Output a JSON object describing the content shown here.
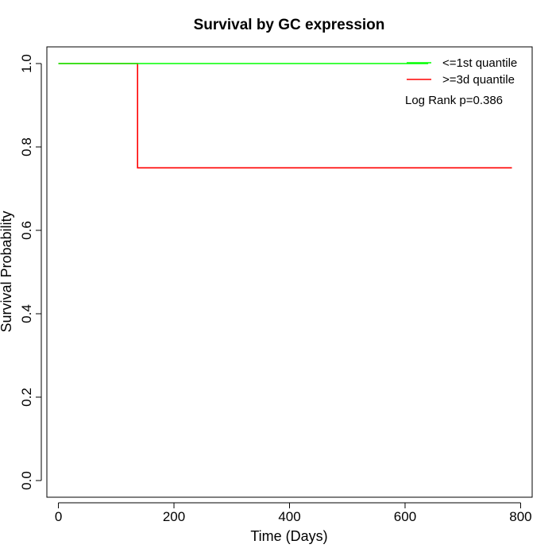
{
  "chart_data": {
    "type": "line",
    "title": "Survival by GC expression",
    "xlabel": "Time (Days)",
    "ylabel": "Survival Probability",
    "xlim": [
      -20,
      820
    ],
    "ylim": [
      -0.04,
      1.04
    ],
    "x_ticks": [
      0,
      200,
      400,
      600,
      800
    ],
    "y_ticks": [
      0.0,
      0.2,
      0.4,
      0.6,
      0.8,
      1.0
    ],
    "x_tick_labels": [
      "0",
      "200",
      "400",
      "600",
      "800"
    ],
    "y_tick_labels": [
      "0.0",
      "0.2",
      "0.4",
      "0.6",
      "0.8",
      "1.0"
    ],
    "grid": false,
    "legend_position": "top-right",
    "series": [
      {
        "name": "<=1st quantile",
        "color": "#00ff00",
        "step": true,
        "points": [
          [
            0,
            1.0
          ],
          [
            640,
            1.0
          ]
        ]
      },
      {
        "name": ">=3d quantile",
        "color": "#ff0000",
        "step": true,
        "points": [
          [
            0,
            1.0
          ],
          [
            137,
            1.0
          ],
          [
            137,
            0.75
          ],
          [
            785,
            0.75
          ]
        ]
      }
    ],
    "annotations": [
      {
        "text": "Log Rank p=0.386"
      }
    ]
  }
}
